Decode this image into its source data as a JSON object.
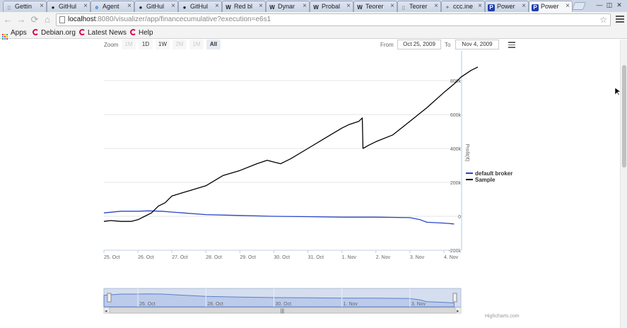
{
  "browser": {
    "tabs": [
      {
        "title": "Gettin",
        "icon": "page-icon",
        "icon_color": "#888888"
      },
      {
        "title": "GitHul",
        "icon": "github-icon",
        "icon_color": "#222222"
      },
      {
        "title": "Agent",
        "icon": "edge-icon",
        "icon_color": "#2a6fd6"
      },
      {
        "title": "GitHul",
        "icon": "github-icon",
        "icon_color": "#222222"
      },
      {
        "title": "GitHul",
        "icon": "github-icon",
        "icon_color": "#222222"
      },
      {
        "title": "Red bl",
        "icon": "wikipedia-icon",
        "icon_color": "#222222"
      },
      {
        "title": "Dynar",
        "icon": "wikipedia-icon",
        "icon_color": "#222222"
      },
      {
        "title": "Probal",
        "icon": "wikipedia-icon",
        "icon_color": "#222222"
      },
      {
        "title": "Teorer",
        "icon": "wikipedia-icon",
        "icon_color": "#222222"
      },
      {
        "title": "Teorer",
        "icon": "page-icon",
        "icon_color": "#888888"
      },
      {
        "title": "ccc.ine",
        "icon": "puzzle-icon",
        "icon_color": "#888888"
      },
      {
        "title": "Power",
        "icon": "app-logo-icon",
        "icon_color": "#1f3fb0"
      },
      {
        "title": "Power",
        "icon": "app-logo-icon",
        "icon_color": "#1f3fb0",
        "active": true
      }
    ],
    "url_host": "localhost",
    "url_path": ":8080/visualizer/app/financecumulative?execution=e6s1",
    "bookmarks": [
      {
        "label": "Apps",
        "icon": "apps-grid-icon"
      },
      {
        "label": "Debian.org",
        "icon": "debian-icon"
      },
      {
        "label": "Latest News",
        "icon": "debian-icon"
      },
      {
        "label": "Help",
        "icon": "debian-icon"
      }
    ]
  },
  "controls": {
    "zoom_label": "Zoom",
    "zoom_buttons": [
      {
        "label": "1M",
        "state": "disabled"
      },
      {
        "label": "1D",
        "state": "normal"
      },
      {
        "label": "1W",
        "state": "normal"
      },
      {
        "label": "2M",
        "state": "disabled"
      },
      {
        "label": "1M",
        "state": "disabled"
      },
      {
        "label": "All",
        "state": "selected"
      }
    ],
    "from_label": "From",
    "from_value": "Oct 25, 2009",
    "to_label": "To",
    "to_value": "Nov 4, 2009"
  },
  "credits": "Highcharts.com",
  "chart_data": {
    "type": "line",
    "xlabel": "",
    "ylabel": "Profit(€)",
    "y_axis_side": "right",
    "ylim": [
      -200000,
      1000000
    ],
    "y_ticks": [
      -200000,
      0,
      200000,
      400000,
      600000,
      800000
    ],
    "y_tick_labels": [
      "-200k",
      "0",
      "200k",
      "400k",
      "600k",
      "800k"
    ],
    "x_ticks": [
      "25. Oct",
      "26. Oct",
      "27. Oct",
      "28. Oct",
      "29. Oct",
      "30. Oct",
      "31. Oct",
      "1. Nov",
      "2. Nov",
      "3. Nov",
      "4. Nov"
    ],
    "xlim": [
      0,
      10.5
    ],
    "legend_position": "right",
    "series": [
      {
        "name": "default broker",
        "color": "#2b44c8",
        "points": [
          [
            0,
            20000
          ],
          [
            0.5,
            30000
          ],
          [
            1,
            30000
          ],
          [
            1.3,
            32000
          ],
          [
            1.7,
            30000
          ],
          [
            2,
            25000
          ],
          [
            3,
            10000
          ],
          [
            4,
            5000
          ],
          [
            5,
            0
          ],
          [
            6,
            -2000
          ],
          [
            7,
            -5000
          ],
          [
            8,
            -5000
          ],
          [
            9,
            -8000
          ],
          [
            9.3,
            -20000
          ],
          [
            9.5,
            -35000
          ],
          [
            10,
            -40000
          ],
          [
            10.3,
            -45000
          ]
        ]
      },
      {
        "name": "Sample",
        "color": "#000000",
        "points": [
          [
            0,
            -30000
          ],
          [
            0.2,
            -25000
          ],
          [
            0.5,
            -30000
          ],
          [
            0.8,
            -30000
          ],
          [
            1,
            -20000
          ],
          [
            1.2,
            0
          ],
          [
            1.4,
            20000
          ],
          [
            1.6,
            60000
          ],
          [
            1.8,
            80000
          ],
          [
            2,
            120000
          ],
          [
            2.5,
            150000
          ],
          [
            3,
            180000
          ],
          [
            3.5,
            240000
          ],
          [
            4,
            270000
          ],
          [
            4.5,
            310000
          ],
          [
            4.8,
            330000
          ],
          [
            5,
            320000
          ],
          [
            5.2,
            310000
          ],
          [
            5.5,
            340000
          ],
          [
            6,
            400000
          ],
          [
            6.5,
            460000
          ],
          [
            7,
            520000
          ],
          [
            7.2,
            540000
          ],
          [
            7.5,
            560000
          ],
          [
            7.6,
            580000
          ],
          [
            7.62,
            400000
          ],
          [
            7.8,
            420000
          ],
          [
            8,
            440000
          ],
          [
            8.5,
            480000
          ],
          [
            9,
            560000
          ],
          [
            9.5,
            640000
          ],
          [
            10,
            730000
          ],
          [
            10.3,
            780000
          ],
          [
            10.5,
            820000
          ],
          [
            10.8,
            860000
          ],
          [
            11,
            880000
          ]
        ]
      }
    ]
  }
}
